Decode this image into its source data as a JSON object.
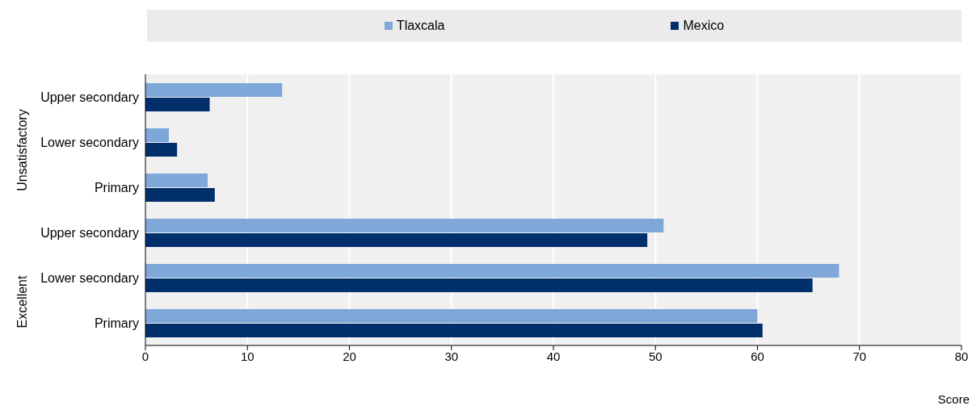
{
  "chart_data": {
    "type": "bar",
    "orientation": "horizontal",
    "xlabel": "Score",
    "categories": [
      "Upper secondary",
      "Lower secondary",
      "Primary",
      "Upper secondary",
      "Lower secondary",
      "Primary"
    ],
    "series": [
      {
        "name": "Tlaxcala",
        "color": "#7fa8d9",
        "values": [
          13.4,
          2.3,
          6.1,
          50.8,
          68.0,
          60.0
        ]
      },
      {
        "name": "Mexico",
        "color": "#002f6c",
        "values": [
          6.3,
          3.1,
          6.8,
          49.2,
          65.4,
          60.5
        ]
      }
    ],
    "xlim": [
      0,
      80
    ],
    "xticks": [
      0,
      10,
      20,
      30,
      40,
      50,
      60,
      70,
      80
    ],
    "grid": "x",
    "legend": "top",
    "annotations": [
      "Unsatisfactory",
      "Excellent"
    ]
  }
}
